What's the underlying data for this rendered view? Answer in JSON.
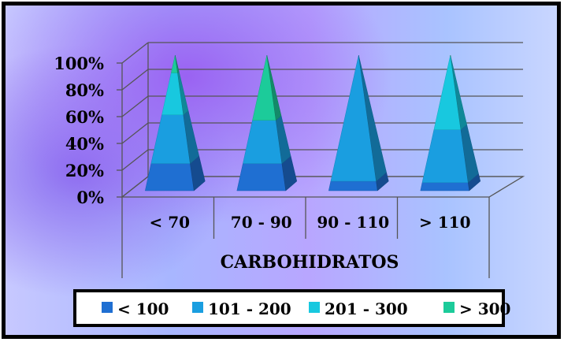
{
  "chart_data": {
    "type": "bar",
    "bar_shape": "pyramid",
    "stacked": "percent",
    "xlabel": "CARBOHIDRATOS",
    "ylabel": "",
    "title": "",
    "categories": [
      "< 70",
      "70 - 90",
      "90 - 110",
      "> 110"
    ],
    "yticks": [
      "0%",
      "20%",
      "40%",
      "60%",
      "80%",
      "100%"
    ],
    "ylim": [
      0,
      100
    ],
    "grid": true,
    "legend_position": "bottom",
    "series": [
      {
        "name": "< 100",
        "color": "#1f6fd2",
        "values": [
          20,
          20,
          7,
          6
        ]
      },
      {
        "name": "101 - 200",
        "color": "#1a9ee0",
        "values": [
          36,
          32,
          93,
          39
        ]
      },
      {
        "name": "201 - 300",
        "color": "#18c8df",
        "values": [
          31,
          0,
          0,
          54
        ]
      },
      {
        "name": "> 300",
        "color": "#1ccb9a",
        "values": [
          13,
          48,
          0,
          1
        ]
      }
    ]
  }
}
